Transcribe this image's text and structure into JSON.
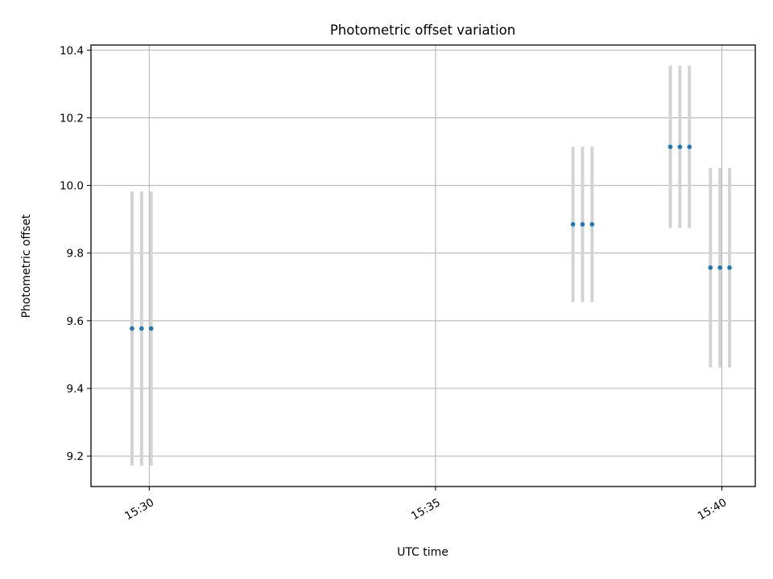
{
  "chart_data": {
    "type": "scatter",
    "title": "Photometric offset variation",
    "xlabel": "UTC time",
    "ylabel": "Photometric offset",
    "x_tick_labels": [
      "15:30",
      "15:35",
      "15:40"
    ],
    "x_tick_times": [
      "15:30",
      "15:35",
      "15:40"
    ],
    "y_ticks": [
      9.2,
      9.4,
      9.6,
      9.8,
      10.0,
      10.2,
      10.4
    ],
    "xlim": [
      "15:28:59",
      "15:40:35"
    ],
    "ylim": [
      9.11,
      10.415
    ],
    "grid": true,
    "marker_color": "#1f77b4",
    "errorbar_color": "#d3d3d3",
    "points": [
      {
        "time": "15:29:42",
        "y": 9.577,
        "yerr": 0.405
      },
      {
        "time": "15:29:52",
        "y": 9.577,
        "yerr": 0.405
      },
      {
        "time": "15:30:02",
        "y": 9.577,
        "yerr": 0.405
      },
      {
        "time": "15:37:24",
        "y": 9.885,
        "yerr": 0.23
      },
      {
        "time": "15:37:34",
        "y": 9.885,
        "yerr": 0.23
      },
      {
        "time": "15:37:44",
        "y": 9.885,
        "yerr": 0.23
      },
      {
        "time": "15:39:06",
        "y": 10.114,
        "yerr": 0.24
      },
      {
        "time": "15:39:16",
        "y": 10.114,
        "yerr": 0.24
      },
      {
        "time": "15:39:26",
        "y": 10.114,
        "yerr": 0.24
      },
      {
        "time": "15:39:48",
        "y": 9.757,
        "yerr": 0.295
      },
      {
        "time": "15:39:58",
        "y": 9.757,
        "yerr": 0.295
      },
      {
        "time": "15:40:08",
        "y": 9.757,
        "yerr": 0.295
      }
    ]
  }
}
